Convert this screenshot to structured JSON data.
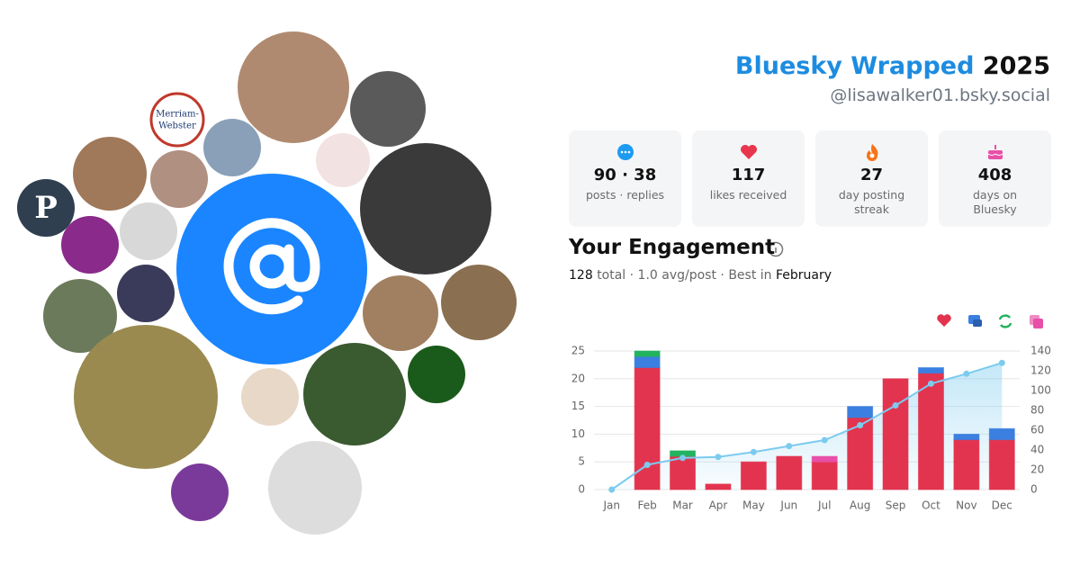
{
  "header": {
    "title": "Bluesky Wrapped",
    "year": "2025",
    "handle": "@lisawalker01.bsky.social"
  },
  "avatars": {
    "logo_text": [
      "Merriam-",
      "Webster"
    ],
    "initial": "P"
  },
  "stats": [
    {
      "value": "90 · 38",
      "label": "posts · replies"
    },
    {
      "value": "117",
      "label": "likes received"
    },
    {
      "value": "27",
      "label": "day posting streak"
    },
    {
      "value": "408",
      "label": "days on Bluesky"
    }
  ],
  "engagement": {
    "title": "Your Engagement",
    "total": "128",
    "summary": "total · 1.0 avg/post · Best in",
    "best": "February"
  },
  "chart_data": {
    "type": "bar",
    "categories": [
      "Jan",
      "Feb",
      "Mar",
      "Apr",
      "May",
      "Jun",
      "Jul",
      "Aug",
      "Sep",
      "Oct",
      "Nov",
      "Dec"
    ],
    "series": [
      {
        "color": "#e3344f",
        "values": [
          0,
          22,
          6,
          1,
          5,
          6,
          5,
          13,
          20,
          21,
          9,
          9
        ]
      },
      {
        "color": "#3b7fe0",
        "values": [
          0,
          2,
          0,
          0,
          0,
          0,
          0,
          2,
          0,
          1,
          1,
          2
        ]
      },
      {
        "color": "#22b35e",
        "values": [
          0,
          1,
          1,
          0,
          0,
          0,
          0,
          0,
          0,
          0,
          0,
          0
        ]
      },
      {
        "color": "#e84fa8",
        "values": [
          0,
          0,
          0,
          0,
          0,
          0,
          1,
          0,
          0,
          0,
          0,
          0
        ]
      },
      {
        "type": "line",
        "axis": "y2",
        "color": "#7ccbef",
        "values": [
          0,
          25,
          32,
          33,
          38,
          44,
          50,
          65,
          85,
          107,
          117,
          128
        ]
      }
    ],
    "ylim": [
      0,
      25
    ],
    "yticks": [
      0,
      5,
      10,
      15,
      20,
      25
    ],
    "y2lim": [
      0,
      140
    ],
    "y2ticks": [
      0,
      20,
      40,
      60,
      80,
      100,
      120,
      140
    ],
    "grid": true
  }
}
